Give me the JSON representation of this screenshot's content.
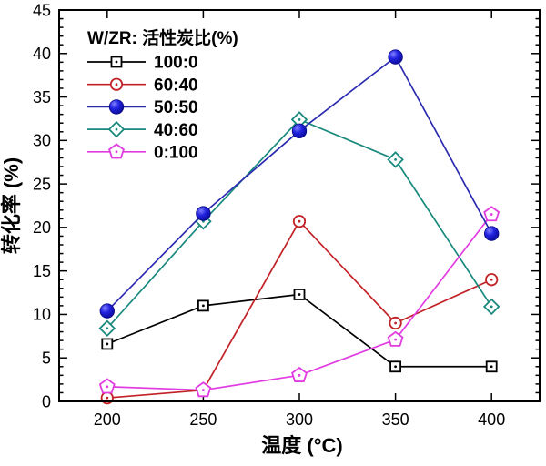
{
  "figure": {
    "background": "#ffffff"
  },
  "chart_data": {
    "type": "line",
    "title": "",
    "xlabel": "温度  (°C)",
    "ylabel": "转化率 (%)",
    "legend_title": "W/ZR: 活性炭比(%)",
    "legend_position": "top-left-inside",
    "grid": false,
    "x": [
      200,
      250,
      300,
      350,
      400
    ],
    "x_tick_labels": [
      "200",
      "250",
      "300",
      "350",
      "400"
    ],
    "y_ticks": [
      0,
      5,
      10,
      15,
      20,
      25,
      30,
      35,
      40,
      45
    ],
    "y_minor_tick_step": 1,
    "xlim": [
      175,
      425
    ],
    "ylim": [
      0,
      45
    ],
    "axis_color": "#000000",
    "series": [
      {
        "name": "100:0",
        "marker": "open-square",
        "color": "#000000",
        "values": [
          6.6,
          11.0,
          12.3,
          4.0,
          4.0
        ]
      },
      {
        "name": "60:40",
        "marker": "open-circle",
        "color": "#c22126",
        "values": [
          0.4,
          1.3,
          20.7,
          9.0,
          14.0
        ]
      },
      {
        "name": "50:50",
        "marker": "filled-ball",
        "color": "#2b2bb0",
        "marker_fill": "#1a1ad9",
        "values": [
          10.4,
          21.6,
          31.1,
          39.6,
          19.3
        ]
      },
      {
        "name": "40:60",
        "marker": "open-diamond",
        "color": "#18897c",
        "values": [
          8.4,
          20.7,
          32.4,
          27.8,
          10.9
        ]
      },
      {
        "name": "0:100",
        "marker": "open-pentagon",
        "color": "#e13ce1",
        "values": [
          1.7,
          1.3,
          3.0,
          7.1,
          21.5
        ]
      }
    ],
    "draw_order": [
      0,
      1,
      3,
      4,
      2
    ]
  }
}
